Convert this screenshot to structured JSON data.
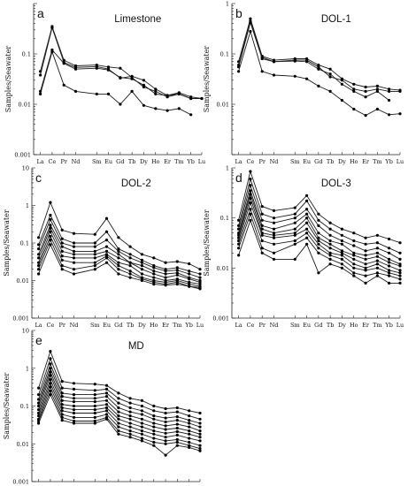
{
  "chart_data": [
    {
      "type": "line",
      "panel_letter": "a",
      "title": "Limestone",
      "ylabel": "Samples/Seawater",
      "y_scale": "log",
      "ylim": [
        0.001,
        1
      ],
      "y_ticks": [
        "0.001",
        "0.01",
        "0.1"
      ],
      "x": [
        "La",
        "Ce",
        "Pr",
        "Nd",
        "Sm",
        "Eu",
        "Gd",
        "Tb",
        "Dy",
        "Ho",
        "Er",
        "Tm",
        "Yb",
        "Lu"
      ],
      "series": [
        {
          "values": [
            0.045,
            0.35,
            0.075,
            0.058,
            0.06,
            0.055,
            0.052,
            0.034,
            0.022,
            0.018,
            0.014,
            0.016,
            0.013,
            0.013
          ]
        },
        {
          "values": [
            0.038,
            0.33,
            0.068,
            0.054,
            0.056,
            0.05,
            0.033,
            0.036,
            0.03,
            0.02,
            0.015,
            0.017,
            0.014,
            0.013
          ]
        },
        {
          "values": [
            0.018,
            0.12,
            0.065,
            0.05,
            0.052,
            0.048,
            0.034,
            0.032,
            0.024,
            0.016,
            0.015,
            0.016,
            0.013,
            0.013
          ]
        },
        {
          "values": [
            0.016,
            0.11,
            0.024,
            0.018,
            0.016,
            0.016,
            0.01,
            0.018,
            0.0095,
            0.0082,
            0.0075,
            0.0082,
            0.0062,
            null
          ]
        }
      ]
    },
    {
      "type": "line",
      "panel_letter": "b",
      "title": "DOL-1",
      "ylabel": "Samples/Seawater",
      "y_scale": "log",
      "ylim": [
        0.001,
        1
      ],
      "y_ticks": [
        "0.01",
        "0.1",
        "1"
      ],
      "x": [
        "La",
        "Ce",
        "Pr",
        "Nd",
        "Sm",
        "Eu",
        "Gd",
        "Tb",
        "Dy",
        "Ho",
        "Er",
        "Tm",
        "Yb",
        "Lu"
      ],
      "series": [
        {
          "values": [
            0.07,
            0.5,
            0.09,
            0.075,
            0.08,
            0.08,
            0.06,
            0.05,
            0.032,
            0.025,
            0.022,
            0.023,
            0.02,
            0.019
          ]
        },
        {
          "values": [
            0.06,
            0.45,
            0.085,
            0.07,
            0.075,
            0.075,
            0.055,
            0.035,
            0.03,
            0.02,
            0.018,
            0.02,
            0.018,
            0.018
          ]
        },
        {
          "values": [
            0.055,
            0.42,
            0.08,
            0.07,
            0.072,
            0.07,
            0.05,
            0.04,
            0.025,
            0.018,
            0.014,
            0.018,
            0.012,
            null
          ]
        },
        {
          "values": [
            0.045,
            0.28,
            0.045,
            0.038,
            0.036,
            0.032,
            0.023,
            0.018,
            0.012,
            0.008,
            0.006,
            0.008,
            0.0062,
            0.0065
          ]
        }
      ]
    },
    {
      "type": "line",
      "panel_letter": "c",
      "title": "DOL-2",
      "ylabel": "Samples/Seawater",
      "y_scale": "log",
      "ylim": [
        0.001,
        10
      ],
      "y_ticks": [
        "0.001",
        "0.01",
        "0.1",
        "1",
        "10"
      ],
      "x": [
        "La",
        "Ce",
        "Pr",
        "Nd",
        "Sm",
        "Eu",
        "Gd",
        "Tb",
        "Dy",
        "Ho",
        "Er",
        "Tm",
        "Yb",
        "Lu"
      ],
      "series": [
        {
          "values": [
            0.14,
            1.2,
            0.22,
            0.18,
            0.17,
            0.45,
            0.14,
            0.08,
            0.05,
            0.04,
            0.03,
            0.032,
            0.028,
            0.02
          ]
        },
        {
          "values": [
            0.09,
            0.55,
            0.13,
            0.1,
            0.1,
            0.2,
            0.07,
            0.05,
            0.035,
            0.025,
            0.02,
            0.022,
            0.018,
            0.015
          ]
        },
        {
          "values": [
            0.07,
            0.42,
            0.1,
            0.08,
            0.08,
            0.12,
            0.06,
            0.04,
            0.03,
            0.022,
            0.018,
            0.019,
            0.015,
            0.012
          ]
        },
        {
          "values": [
            0.05,
            0.3,
            0.08,
            0.06,
            0.06,
            0.08,
            0.05,
            0.03,
            0.025,
            0.018,
            0.015,
            0.016,
            0.012,
            0.01
          ]
        },
        {
          "values": [
            0.04,
            0.25,
            0.06,
            0.05,
            0.05,
            0.06,
            0.04,
            0.03,
            0.02,
            0.015,
            0.012,
            0.014,
            0.011,
            0.009
          ]
        },
        {
          "values": [
            0.03,
            0.2,
            0.045,
            0.04,
            0.04,
            0.05,
            0.03,
            0.025,
            0.015,
            0.012,
            0.01,
            0.011,
            0.009,
            0.008
          ]
        },
        {
          "values": [
            0.025,
            0.15,
            0.035,
            0.03,
            0.03,
            0.045,
            0.025,
            0.018,
            0.012,
            0.01,
            0.009,
            0.01,
            0.008,
            0.007
          ]
        },
        {
          "values": [
            0.02,
            0.12,
            0.025,
            0.02,
            0.025,
            0.04,
            0.02,
            0.015,
            0.011,
            0.009,
            0.008,
            0.009,
            0.007,
            0.0065
          ]
        },
        {
          "values": [
            0.015,
            0.09,
            0.02,
            0.015,
            0.02,
            0.03,
            0.015,
            0.012,
            0.01,
            0.008,
            0.0075,
            0.008,
            0.007,
            0.006
          ]
        }
      ]
    },
    {
      "type": "line",
      "panel_letter": "d",
      "title": "DOL-3",
      "ylabel": "Samples/Seawater",
      "y_scale": "log",
      "ylim": [
        0.001,
        1
      ],
      "y_ticks": [
        "0.001",
        "0.01",
        "0.1",
        "1"
      ],
      "x": [
        "La",
        "Ce",
        "Pr",
        "Nd",
        "Sm",
        "Eu",
        "Gd",
        "Tb",
        "Dy",
        "Ho",
        "Er",
        "Tm",
        "Yb",
        "Lu"
      ],
      "series": [
        {
          "values": [
            0.09,
            0.85,
            0.17,
            0.14,
            0.16,
            0.28,
            0.12,
            0.08,
            0.06,
            0.05,
            0.04,
            0.045,
            0.038,
            0.032
          ]
        },
        {
          "values": [
            0.07,
            0.6,
            0.12,
            0.1,
            0.12,
            0.22,
            0.09,
            0.06,
            0.045,
            0.035,
            0.03,
            0.032,
            0.025,
            0.02
          ]
        },
        {
          "values": [
            0.06,
            0.45,
            0.09,
            0.08,
            0.1,
            0.15,
            0.07,
            0.045,
            0.035,
            0.028,
            0.022,
            0.025,
            0.02,
            0.015
          ]
        },
        {
          "values": [
            0.05,
            0.35,
            0.07,
            0.06,
            0.08,
            0.12,
            0.05,
            0.035,
            0.03,
            0.02,
            0.018,
            0.02,
            0.015,
            0.012
          ]
        },
        {
          "values": [
            0.045,
            0.3,
            0.06,
            0.05,
            0.06,
            0.1,
            0.04,
            0.03,
            0.022,
            0.018,
            0.015,
            0.017,
            0.013,
            0.011
          ]
        },
        {
          "values": [
            0.04,
            0.25,
            0.05,
            0.045,
            0.05,
            0.08,
            0.035,
            0.025,
            0.02,
            0.015,
            0.012,
            0.014,
            0.011,
            0.009
          ]
        },
        {
          "values": [
            0.035,
            0.2,
            0.045,
            0.04,
            0.045,
            0.06,
            0.03,
            0.02,
            0.018,
            0.012,
            0.01,
            0.012,
            0.009,
            0.008
          ]
        },
        {
          "values": [
            0.03,
            0.15,
            0.035,
            0.03,
            0.035,
            0.05,
            0.025,
            0.018,
            0.015,
            0.01,
            0.009,
            0.01,
            0.008,
            0.007
          ]
        },
        {
          "values": [
            0.025,
            0.12,
            0.025,
            0.02,
            0.03,
            0.04,
            0.02,
            0.015,
            0.012,
            0.008,
            0.007,
            0.008,
            0.007,
            0.006
          ]
        },
        {
          "values": [
            0.018,
            0.09,
            0.02,
            0.015,
            0.015,
            0.03,
            0.008,
            0.012,
            0.01,
            0.007,
            0.005,
            0.007,
            0.005,
            0.005
          ]
        }
      ]
    },
    {
      "type": "line",
      "panel_letter": "e",
      "title": "MD",
      "ylabel": "Samples/Seawater",
      "y_scale": "log",
      "ylim": [
        0.001,
        10
      ],
      "y_ticks": [
        "0.001",
        "0.01",
        "0.1",
        "1",
        "10"
      ],
      "x": [
        "La",
        "Ce",
        "Pr",
        "Nd",
        "Sm",
        "Eu",
        "Gd",
        "Tb",
        "Dy",
        "Ho",
        "Er",
        "Tm",
        "Yb",
        "Lu"
      ],
      "series": [
        {
          "values": [
            0.3,
            2.8,
            0.45,
            0.4,
            0.38,
            0.35,
            0.22,
            0.16,
            0.14,
            0.1,
            0.085,
            0.09,
            0.075,
            0.065
          ]
        },
        {
          "values": [
            0.2,
            1.8,
            0.3,
            0.28,
            0.26,
            0.28,
            0.16,
            0.12,
            0.1,
            0.075,
            0.065,
            0.07,
            0.055,
            0.045
          ]
        },
        {
          "values": [
            0.15,
            1.3,
            0.22,
            0.2,
            0.2,
            0.22,
            0.12,
            0.09,
            0.075,
            0.055,
            0.048,
            0.052,
            0.042,
            0.035
          ]
        },
        {
          "values": [
            0.12,
            1,
            0.18,
            0.16,
            0.16,
            0.18,
            0.09,
            0.07,
            0.06,
            0.045,
            0.038,
            0.042,
            0.035,
            0.028
          ]
        },
        {
          "values": [
            0.1,
            0.8,
            0.14,
            0.13,
            0.13,
            0.14,
            0.07,
            0.055,
            0.045,
            0.035,
            0.03,
            0.033,
            0.028,
            0.022
          ]
        },
        {
          "values": [
            0.08,
            0.65,
            0.11,
            0.1,
            0.1,
            0.11,
            0.055,
            0.045,
            0.035,
            0.028,
            0.024,
            0.026,
            0.022,
            0.018
          ]
        },
        {
          "values": [
            0.065,
            0.5,
            0.09,
            0.08,
            0.08,
            0.09,
            0.045,
            0.035,
            0.028,
            0.022,
            0.019,
            0.021,
            0.018,
            0.015
          ]
        },
        {
          "values": [
            0.055,
            0.4,
            0.075,
            0.065,
            0.065,
            0.075,
            0.035,
            0.028,
            0.022,
            0.018,
            0.015,
            0.017,
            0.014,
            0.012
          ]
        },
        {
          "values": [
            0.045,
            0.32,
            0.06,
            0.05,
            0.05,
            0.06,
            0.028,
            0.022,
            0.018,
            0.014,
            0.012,
            0.013,
            0.011,
            0.009
          ]
        },
        {
          "values": [
            0.04,
            0.25,
            0.05,
            0.04,
            0.04,
            0.05,
            0.022,
            0.018,
            0.014,
            0.011,
            0.01,
            0.011,
            0.009,
            0.0075
          ]
        },
        {
          "values": [
            0.035,
            0.2,
            0.042,
            0.035,
            0.035,
            0.045,
            0.018,
            0.015,
            0.012,
            0.009,
            0.005,
            0.009,
            0.008,
            0.0065
          ]
        }
      ]
    }
  ]
}
